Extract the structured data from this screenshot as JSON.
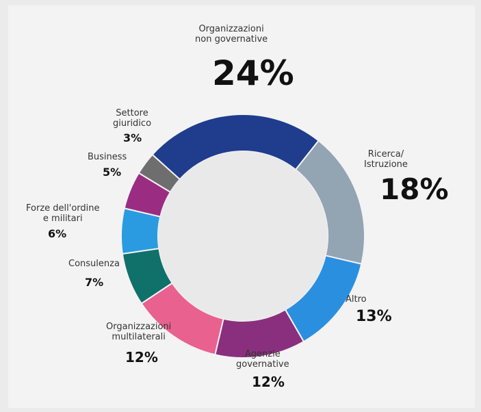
{
  "chart_data": {
    "type": "donut",
    "categories": [
      "Organizzazioni\nnon governative",
      "Ricerca/\nIstruzione",
      "Altro",
      "Agenzie\ngovernative",
      "Organizzazioni\nmultilaterali",
      "Consulenza",
      "Forze dell'ordine\ne militari",
      "Business",
      "Settore\ngiuridico"
    ],
    "values": [
      24,
      18,
      13,
      12,
      12,
      7,
      6,
      5,
      3
    ],
    "value_labels": [
      "24%",
      "18%",
      "13%",
      "12%",
      "12%",
      "7%",
      "6%",
      "5%",
      "3%"
    ],
    "colors": [
      "#1f3d8c",
      "#93a4b3",
      "#2b8fe0",
      "#8a2f7e",
      "#e8618f",
      "#10706a",
      "#2a9be0",
      "#9a2d82",
      "#6e6e6e"
    ]
  }
}
